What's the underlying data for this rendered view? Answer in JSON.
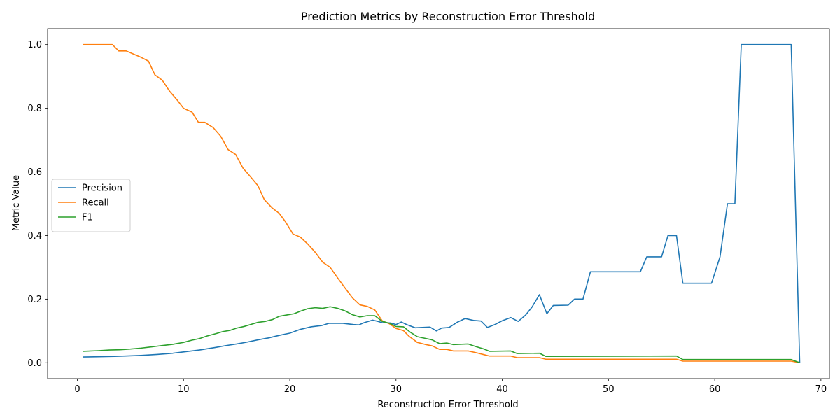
{
  "chart_data": {
    "type": "line",
    "title": "Prediction Metrics by Reconstruction Error Threshold",
    "xlabel": "Reconstruction Error Threshold",
    "ylabel": "Metric Value",
    "xlim": [
      -2.8,
      70.8
    ],
    "ylim": [
      -0.05,
      1.05
    ],
    "xticks": [
      0,
      10,
      20,
      30,
      40,
      50,
      60,
      70
    ],
    "yticks": [
      0.0,
      0.2,
      0.4,
      0.6,
      0.8,
      1.0
    ],
    "xtick_labels": [
      "0",
      "10",
      "20",
      "30",
      "40",
      "50",
      "60",
      "70"
    ],
    "ytick_labels": [
      "0.0",
      "0.2",
      "0.4",
      "0.6",
      "0.8",
      "1.0"
    ],
    "grid": false,
    "legend_position": "center-left",
    "series": [
      {
        "name": "Precision",
        "color": "#1f77b4",
        "points": [
          [
            0.5,
            0.018
          ],
          [
            2,
            0.019
          ],
          [
            3.5,
            0.02
          ],
          [
            4.5,
            0.021
          ],
          [
            6,
            0.023
          ],
          [
            7.5,
            0.026
          ],
          [
            9,
            0.03
          ],
          [
            10,
            0.034
          ],
          [
            11.5,
            0.04
          ],
          [
            13,
            0.048
          ],
          [
            14,
            0.054
          ],
          [
            15,
            0.059
          ],
          [
            16,
            0.065
          ],
          [
            17,
            0.072
          ],
          [
            18,
            0.078
          ],
          [
            19,
            0.086
          ],
          [
            20,
            0.093
          ],
          [
            21,
            0.105
          ],
          [
            22,
            0.113
          ],
          [
            23,
            0.117
          ],
          [
            23.7,
            0.124
          ],
          [
            25,
            0.124
          ],
          [
            26,
            0.12
          ],
          [
            26.5,
            0.119
          ],
          [
            27,
            0.126
          ],
          [
            27.8,
            0.134
          ],
          [
            28.3,
            0.13
          ],
          [
            28.7,
            0.126
          ],
          [
            29.5,
            0.125
          ],
          [
            30,
            0.12
          ],
          [
            30.5,
            0.128
          ],
          [
            31,
            0.12
          ],
          [
            31.8,
            0.11
          ],
          [
            33.2,
            0.112
          ],
          [
            33.8,
            0.1
          ],
          [
            34.3,
            0.109
          ],
          [
            35,
            0.111
          ],
          [
            35.8,
            0.128
          ],
          [
            36.5,
            0.139
          ],
          [
            37.3,
            0.133
          ],
          [
            38,
            0.131
          ],
          [
            38.6,
            0.111
          ],
          [
            39.3,
            0.12
          ],
          [
            40,
            0.132
          ],
          [
            40.8,
            0.142
          ],
          [
            41.5,
            0.13
          ],
          [
            42.2,
            0.15
          ],
          [
            42.8,
            0.175
          ],
          [
            43.5,
            0.214
          ],
          [
            44.2,
            0.154
          ],
          [
            44.8,
            0.18
          ],
          [
            46.2,
            0.181
          ],
          [
            46.8,
            0.2
          ],
          [
            47.6,
            0.2
          ],
          [
            48.3,
            0.286
          ],
          [
            53,
            0.286
          ],
          [
            53.6,
            0.333
          ],
          [
            55,
            0.333
          ],
          [
            55.6,
            0.4
          ],
          [
            56.4,
            0.4
          ],
          [
            57,
            0.25
          ],
          [
            59.7,
            0.25
          ],
          [
            60.5,
            0.333
          ],
          [
            61.2,
            0.5
          ],
          [
            61.9,
            0.5
          ],
          [
            62.5,
            1.0
          ],
          [
            67.2,
            1.0
          ],
          [
            68,
            0.0
          ]
        ]
      },
      {
        "name": "Recall",
        "color": "#ff7f0e",
        "points": [
          [
            0.5,
            1.0
          ],
          [
            3.3,
            1.0
          ],
          [
            3.9,
            0.98
          ],
          [
            4.6,
            0.98
          ],
          [
            5.3,
            0.97
          ],
          [
            6,
            0.96
          ],
          [
            6.7,
            0.948
          ],
          [
            7.3,
            0.905
          ],
          [
            8,
            0.888
          ],
          [
            8.7,
            0.853
          ],
          [
            9.4,
            0.826
          ],
          [
            10,
            0.8
          ],
          [
            10.8,
            0.788
          ],
          [
            11.4,
            0.756
          ],
          [
            12,
            0.756
          ],
          [
            12.8,
            0.739
          ],
          [
            13.5,
            0.712
          ],
          [
            14.2,
            0.67
          ],
          [
            14.9,
            0.655
          ],
          [
            15.6,
            0.612
          ],
          [
            16.3,
            0.585
          ],
          [
            17,
            0.557
          ],
          [
            17.6,
            0.513
          ],
          [
            18.3,
            0.488
          ],
          [
            19,
            0.47
          ],
          [
            19.6,
            0.443
          ],
          [
            20.3,
            0.405
          ],
          [
            21,
            0.395
          ],
          [
            21.7,
            0.373
          ],
          [
            22.4,
            0.347
          ],
          [
            23.1,
            0.316
          ],
          [
            23.8,
            0.3
          ],
          [
            24.5,
            0.267
          ],
          [
            25.2,
            0.235
          ],
          [
            25.9,
            0.204
          ],
          [
            26.6,
            0.182
          ],
          [
            27.3,
            0.177
          ],
          [
            28,
            0.166
          ],
          [
            28.7,
            0.132
          ],
          [
            29.4,
            0.122
          ],
          [
            30,
            0.108
          ],
          [
            30.7,
            0.101
          ],
          [
            31.2,
            0.084
          ],
          [
            32,
            0.064
          ],
          [
            32.7,
            0.058
          ],
          [
            33.4,
            0.053
          ],
          [
            34.1,
            0.042
          ],
          [
            34.8,
            0.042
          ],
          [
            35.4,
            0.037
          ],
          [
            36.1,
            0.037
          ],
          [
            36.8,
            0.037
          ],
          [
            37.5,
            0.032
          ],
          [
            38.2,
            0.026
          ],
          [
            38.8,
            0.021
          ],
          [
            40.8,
            0.021
          ],
          [
            41.4,
            0.016
          ],
          [
            43.5,
            0.016
          ],
          [
            44.1,
            0.011
          ],
          [
            56.4,
            0.011
          ],
          [
            57,
            0.005
          ],
          [
            67.2,
            0.005
          ],
          [
            68,
            0.0
          ]
        ]
      },
      {
        "name": "F1",
        "color": "#2ca02c",
        "points": [
          [
            0.5,
            0.036
          ],
          [
            2,
            0.038
          ],
          [
            3,
            0.04
          ],
          [
            4,
            0.041
          ],
          [
            5,
            0.043
          ],
          [
            6,
            0.046
          ],
          [
            7,
            0.05
          ],
          [
            7.5,
            0.052
          ],
          [
            8,
            0.054
          ],
          [
            9,
            0.058
          ],
          [
            10,
            0.064
          ],
          [
            10.8,
            0.071
          ],
          [
            11.5,
            0.076
          ],
          [
            12.2,
            0.084
          ],
          [
            13,
            0.091
          ],
          [
            13.7,
            0.098
          ],
          [
            14.4,
            0.102
          ],
          [
            15,
            0.109
          ],
          [
            15.7,
            0.114
          ],
          [
            16.4,
            0.121
          ],
          [
            17,
            0.127
          ],
          [
            17.7,
            0.13
          ],
          [
            18.4,
            0.136
          ],
          [
            19,
            0.146
          ],
          [
            19.7,
            0.15
          ],
          [
            20.4,
            0.154
          ],
          [
            21,
            0.162
          ],
          [
            21.7,
            0.17
          ],
          [
            22.4,
            0.173
          ],
          [
            23.1,
            0.171
          ],
          [
            23.8,
            0.176
          ],
          [
            24.5,
            0.171
          ],
          [
            25.2,
            0.163
          ],
          [
            25.9,
            0.151
          ],
          [
            26.6,
            0.144
          ],
          [
            27.3,
            0.148
          ],
          [
            28,
            0.148
          ],
          [
            28.7,
            0.13
          ],
          [
            29.4,
            0.124
          ],
          [
            30,
            0.114
          ],
          [
            30.7,
            0.113
          ],
          [
            31.3,
            0.097
          ],
          [
            32,
            0.082
          ],
          [
            32.7,
            0.077
          ],
          [
            33.4,
            0.072
          ],
          [
            34.1,
            0.06
          ],
          [
            34.8,
            0.062
          ],
          [
            35.4,
            0.057
          ],
          [
            36.8,
            0.059
          ],
          [
            37.5,
            0.051
          ],
          [
            38.2,
            0.044
          ],
          [
            38.8,
            0.036
          ],
          [
            40.8,
            0.037
          ],
          [
            41.4,
            0.029
          ],
          [
            43.5,
            0.03
          ],
          [
            44.1,
            0.02
          ],
          [
            56.4,
            0.021
          ],
          [
            57,
            0.01
          ],
          [
            67.2,
            0.01
          ],
          [
            68,
            0.0
          ]
        ]
      }
    ]
  }
}
